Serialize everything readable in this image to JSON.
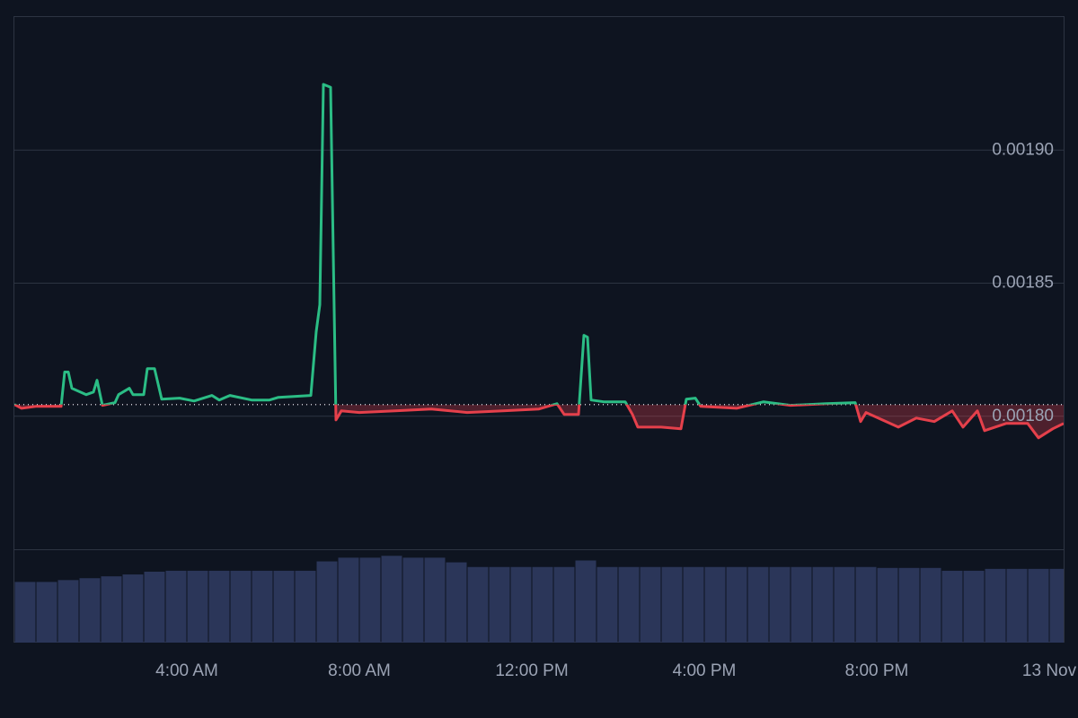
{
  "chart_data": {
    "type": "baseline",
    "x": [
      0,
      0.167,
      0.5,
      1.083,
      1.167,
      1.25,
      1.333,
      1.667,
      1.833,
      1.917,
      2.042,
      2.333,
      2.417,
      2.667,
      2.75,
      3.0,
      3.083,
      3.25,
      3.417,
      3.833,
      4.167,
      4.583,
      4.75,
      5.0,
      5.5,
      5.917,
      6.125,
      6.875,
      7.0,
      7.083,
      7.167,
      7.333,
      7.458,
      7.583,
      8.0,
      8.833,
      9.667,
      10.5,
      11.333,
      12.167,
      12.583,
      12.75,
      13.083,
      13.208,
      13.292,
      13.375,
      13.667,
      14.167,
      14.333,
      14.458,
      15.0,
      15.458,
      15.583,
      15.792,
      15.917,
      16.75,
      17.375,
      18.0,
      18.833,
      19.5,
      19.625,
      19.75,
      20.5,
      20.917,
      21.333,
      21.75,
      22.0,
      22.333,
      22.5,
      23.0,
      23.5,
      23.75,
      24.083,
      24.333
    ],
    "values": [
      0.0018044,
      0.001803,
      0.0018037,
      0.0018037,
      0.0018166,
      0.0018166,
      0.0018105,
      0.0018081,
      0.0018091,
      0.0018135,
      0.0018041,
      0.0018051,
      0.0018081,
      0.0018105,
      0.0018081,
      0.0018081,
      0.0018179,
      0.0018179,
      0.0018064,
      0.0018068,
      0.0018057,
      0.0018078,
      0.0018061,
      0.0018078,
      0.0018061,
      0.0018061,
      0.0018071,
      0.0018078,
      0.0018318,
      0.0018419,
      0.0019247,
      0.0019236,
      0.0017986,
      0.001802,
      0.0018014,
      0.001802,
      0.0018027,
      0.0018014,
      0.001802,
      0.0018027,
      0.0018047,
      0.0018007,
      0.0018007,
      0.0018304,
      0.0018297,
      0.0018061,
      0.0018054,
      0.0018054,
      0.0018007,
      0.0017959,
      0.0017959,
      0.0017953,
      0.0018064,
      0.0018068,
      0.0018037,
      0.001803,
      0.0018054,
      0.0018041,
      0.0018047,
      0.0018051,
      0.001798,
      0.0018014,
      0.0017959,
      0.0017993,
      0.001798,
      0.001802,
      0.0017959,
      0.001802,
      0.0017946,
      0.0017973,
      0.0017973,
      0.0017919,
      0.0017953,
      0.0017973
    ],
    "baseline": 0.0018044,
    "up_color": "#2bbd85",
    "down_color": "#e5404b",
    "xlim": [
      0,
      24.333
    ],
    "xticks": [
      {
        "value": 4,
        "label": "4:00 AM"
      },
      {
        "value": 8,
        "label": "8:00 AM"
      },
      {
        "value": 12,
        "label": "12:00 PM"
      },
      {
        "value": 16,
        "label": "4:00 PM"
      },
      {
        "value": 20,
        "label": "8:00 PM"
      },
      {
        "value": 24,
        "label": "13 Nov"
      }
    ],
    "ylim": [
      0.00175,
      0.00195
    ],
    "yticks": [
      {
        "value": 0.0018,
        "label": "0.00180"
      },
      {
        "value": 0.00185,
        "label": "0.00185"
      },
      {
        "value": 0.0019,
        "label": "0.00190"
      }
    ],
    "grid": true,
    "volume": {
      "color": "#2b3659",
      "ylim": [
        0,
        100
      ],
      "x": [
        0.25,
        0.75,
        1.25,
        1.75,
        2.25,
        2.75,
        3.25,
        3.75,
        4.25,
        4.75,
        5.25,
        5.75,
        6.25,
        6.75,
        7.25,
        7.75,
        8.25,
        8.75,
        9.25,
        9.75,
        10.25,
        10.75,
        11.25,
        11.75,
        12.25,
        12.75,
        13.25,
        13.75,
        14.25,
        14.75,
        15.25,
        15.75,
        16.25,
        16.75,
        17.25,
        17.75,
        18.25,
        18.75,
        19.25,
        19.75,
        20.25,
        20.75,
        21.25,
        21.75,
        22.25,
        22.75,
        23.25,
        23.75,
        24.25
      ],
      "values": [
        65,
        65,
        67,
        69,
        71,
        73,
        76,
        77,
        77,
        77,
        77,
        77,
        77,
        77,
        87,
        91,
        91,
        93,
        91,
        91,
        86,
        81,
        81,
        81,
        81,
        81,
        88,
        81,
        81,
        81,
        81,
        81,
        81,
        81,
        81,
        81,
        81,
        81,
        81,
        81,
        80,
        80,
        80,
        77,
        77,
        79,
        79,
        79,
        79
      ]
    }
  }
}
